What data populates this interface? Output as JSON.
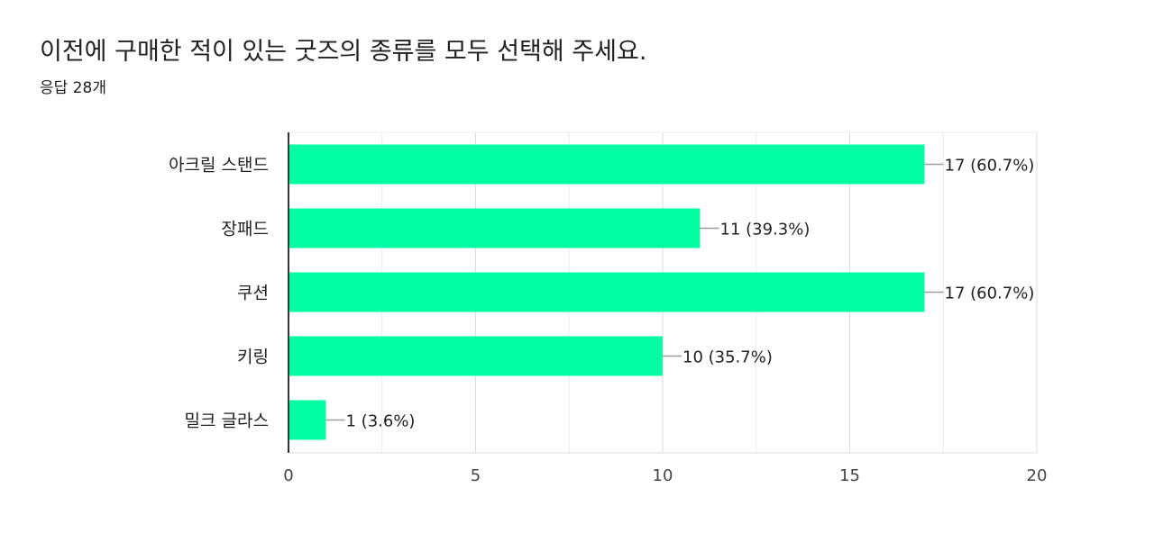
{
  "question": {
    "title": "이전에 구매한 적이 있는 굿즈의 종류를 모두 선택해 주세요.",
    "responses": "응답 28개"
  },
  "chart_data": {
    "type": "bar",
    "orientation": "horizontal",
    "categories": [
      "아크릴 스탠드",
      "장패드",
      "쿠션",
      "키링",
      "밀크 글라스"
    ],
    "values": [
      17,
      11,
      17,
      10,
      1
    ],
    "data_labels": [
      "17 (60.7%)",
      "11 (39.3%)",
      "17 (60.7%)",
      "10 (35.7%)",
      "1 (3.6%)"
    ],
    "xlim": [
      0,
      20
    ],
    "x_ticks": [
      0,
      5,
      10,
      15,
      20
    ],
    "grid": true,
    "bar_color": "#00FFA3"
  }
}
